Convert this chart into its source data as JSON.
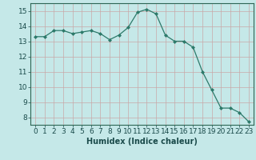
{
  "x": [
    0,
    1,
    2,
    3,
    4,
    5,
    6,
    7,
    8,
    9,
    10,
    11,
    12,
    13,
    14,
    15,
    16,
    17,
    18,
    19,
    20,
    21,
    22,
    23
  ],
  "y": [
    13.3,
    13.3,
    13.7,
    13.7,
    13.5,
    13.6,
    13.7,
    13.5,
    13.1,
    13.4,
    13.9,
    14.9,
    15.1,
    14.8,
    13.4,
    13.0,
    13.0,
    12.6,
    11.0,
    9.8,
    8.6,
    8.6,
    8.3,
    7.7
  ],
  "line_color": "#2d7a6a",
  "marker": "D",
  "marker_size": 2.0,
  "background_color": "#c5e8e8",
  "grid_color": "#a8d0cc",
  "xlabel": "Humidex (Indice chaleur)",
  "xlabel_fontsize": 7,
  "xlim": [
    -0.5,
    23.5
  ],
  "ylim": [
    7.5,
    15.5
  ],
  "yticks": [
    8,
    9,
    10,
    11,
    12,
    13,
    14,
    15
  ],
  "xticks": [
    0,
    1,
    2,
    3,
    4,
    5,
    6,
    7,
    8,
    9,
    10,
    11,
    12,
    13,
    14,
    15,
    16,
    17,
    18,
    19,
    20,
    21,
    22,
    23
  ],
  "tick_fontsize": 6.5
}
